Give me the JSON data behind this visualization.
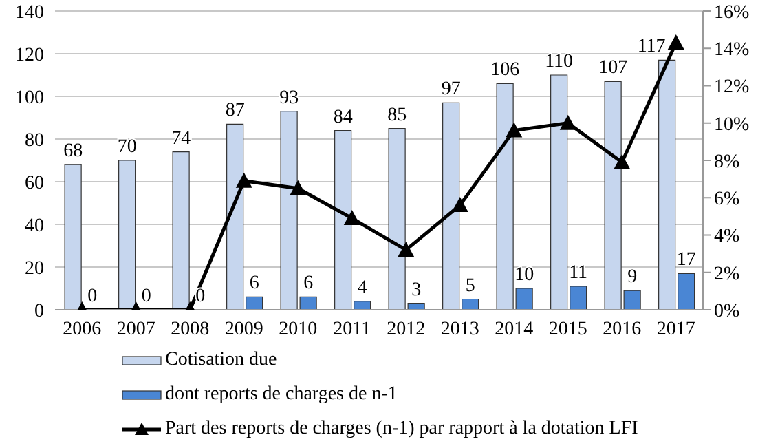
{
  "chart_data": {
    "type": "bar",
    "categories": [
      "2006",
      "2007",
      "2008",
      "2009",
      "2010",
      "2011",
      "2012",
      "2013",
      "2014",
      "2015",
      "2016",
      "2017"
    ],
    "series": [
      {
        "name": "Cotisation due",
        "color": "#c6d6ee",
        "data_labels": true,
        "values": [
          68,
          70,
          74,
          87,
          93,
          84,
          85,
          97,
          106,
          110,
          107,
          117
        ]
      },
      {
        "name": "dont reports de charges de n-1",
        "color": "#4a86d4",
        "data_labels": true,
        "values": [
          0,
          0,
          0,
          6,
          6,
          4,
          3,
          5,
          10,
          11,
          9,
          17
        ]
      },
      {
        "name": "Part des reports de charges (n-1) par rapport à la dotation LFI",
        "type": "line",
        "axis": "y2",
        "color": "#000000",
        "marker": "triangle",
        "values": [
          0,
          0,
          0,
          6.9,
          6.5,
          4.9,
          3.2,
          5.6,
          9.6,
          10.0,
          7.9,
          14.3
        ]
      }
    ],
    "ylim": [
      0,
      140
    ],
    "yticks": [
      0,
      20,
      40,
      60,
      80,
      100,
      120,
      140
    ],
    "y2lim": [
      0,
      16
    ],
    "y2ticks": [
      {
        "value": 0,
        "label": "0%"
      },
      {
        "value": 2,
        "label": "2%"
      },
      {
        "value": 4,
        "label": "4%"
      },
      {
        "value": 6,
        "label": "6%"
      },
      {
        "value": 8,
        "label": "8%"
      },
      {
        "value": 10,
        "label": "10%"
      },
      {
        "value": 12,
        "label": "12%"
      },
      {
        "value": 14,
        "label": "14%"
      },
      {
        "value": 16,
        "label": "16%"
      }
    ],
    "grid": "y",
    "legend": "bottom"
  }
}
